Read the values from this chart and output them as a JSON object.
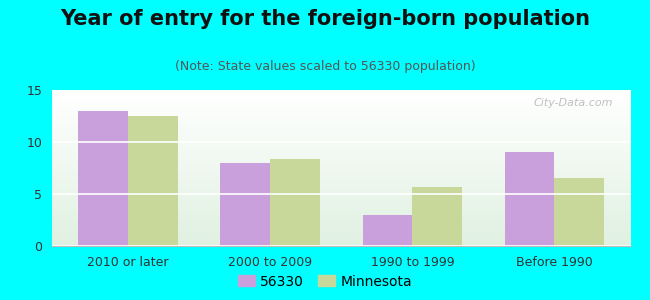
{
  "title": "Year of entry for the foreign-born population",
  "subtitle": "(Note: State values scaled to 56330 population)",
  "categories": [
    "2010 or later",
    "2000 to 2009",
    "1990 to 1999",
    "Before 1990"
  ],
  "values_56330": [
    13.0,
    8.0,
    3.0,
    9.0
  ],
  "values_minnesota": [
    12.5,
    8.4,
    5.7,
    6.5
  ],
  "color_56330": "#c9a0dc",
  "color_minnesota": "#c8d89a",
  "ylim": [
    0,
    15
  ],
  "yticks": [
    0,
    5,
    10,
    15
  ],
  "bar_width": 0.35,
  "background_color": "#00ffff",
  "plot_bg_color_top": "#ffffff",
  "plot_bg_color_bottom": "#dff0e0",
  "legend_label_56330": "56330",
  "legend_label_minnesota": "Minnesota",
  "watermark": "City-Data.com",
  "title_fontsize": 15,
  "subtitle_fontsize": 9,
  "tick_fontsize": 9,
  "legend_fontsize": 10
}
